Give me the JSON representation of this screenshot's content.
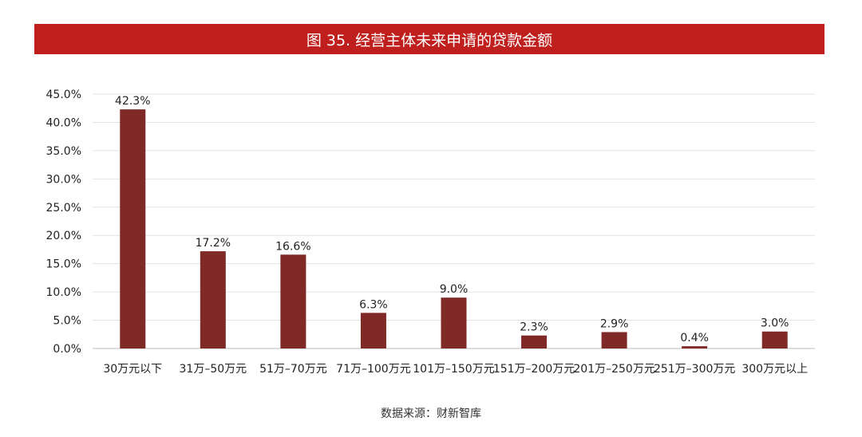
{
  "title": "图 35. 经营主体未来申请的贷款金额",
  "source": "数据来源：财新智库",
  "colors": {
    "banner": "#c0201d",
    "bar": "#7f2a27",
    "grid": "#e2e2e2"
  },
  "chart_data": {
    "type": "bar",
    "title": "图 35. 经营主体未来申请的贷款金额",
    "categories": [
      "30万元以下",
      "31万–50万元",
      "51万–70万元",
      "71万–100万元",
      "101万–150万元",
      "151万–200万元",
      "201万–250万元",
      "251万–300万元",
      "300万元以上"
    ],
    "values": [
      42.3,
      17.2,
      16.6,
      6.3,
      9.0,
      2.3,
      2.9,
      0.4,
      3.0
    ],
    "value_labels": [
      "42.3%",
      "17.2%",
      "16.6%",
      "6.3%",
      "9.0%",
      "2.3%",
      "2.9%",
      "0.4%",
      "3.0%"
    ],
    "ylim": [
      0,
      45
    ],
    "yticks": [
      "0.0%",
      "5.0%",
      "10.0%",
      "15.0%",
      "20.0%",
      "25.0%",
      "30.0%",
      "35.0%",
      "40.0%",
      "45.0%"
    ],
    "ytick_values": [
      0,
      5,
      10,
      15,
      20,
      25,
      30,
      35,
      40,
      45
    ],
    "grid": true,
    "legend": "none"
  }
}
